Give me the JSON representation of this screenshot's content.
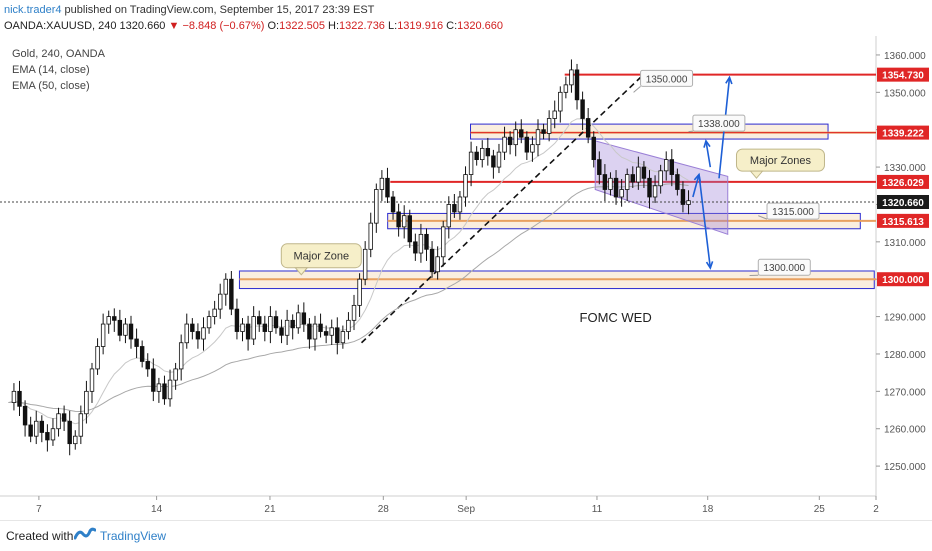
{
  "header": {
    "author": "nick.trader4",
    "published": "published on TradingView.com, September 15, 2017 23:39 EST",
    "symbol": "OANDA:XAUUSD, 240",
    "last": "1320.660",
    "arrow": "▼",
    "change": "−8.848 (−0.67%)",
    "o_label": "O:",
    "o": "1322.505",
    "h_label": "H:",
    "h": "1322.736",
    "l_label": "L:",
    "l": "1319.916",
    "c_label": "C:",
    "c": "1320.660"
  },
  "legend": {
    "line1": "Gold, 240, OANDA",
    "line2": "EMA (14, close)",
    "line3": "EMA (50, close)"
  },
  "footer": {
    "created": "Created with",
    "brand": "TradingView"
  },
  "chart_data": {
    "type": "candlestick",
    "ylim": [
      1242,
      1364
    ],
    "yticks": [
      1250,
      1260,
      1270,
      1280,
      1290,
      1300,
      1310,
      1320,
      1330,
      1340,
      1350,
      1360
    ],
    "xticks": [
      {
        "label": "7",
        "t": 0.04
      },
      {
        "label": "14",
        "t": 0.175
      },
      {
        "label": "21",
        "t": 0.305
      },
      {
        "label": "28",
        "t": 0.435
      },
      {
        "label": "Sep",
        "t": 0.53
      },
      {
        "label": "11",
        "t": 0.68
      },
      {
        "label": "18",
        "t": 0.807
      },
      {
        "label": "25",
        "t": 0.935
      },
      {
        "label": "2",
        "t": 1.0
      }
    ],
    "current_price": 1320.66,
    "price_labels": [
      {
        "value": 1354.73,
        "text": "1354.730",
        "color": "#e02626"
      },
      {
        "value": 1339.222,
        "text": "1339.222",
        "color": "#e02626"
      },
      {
        "value": 1326.029,
        "text": "1326.029",
        "color": "#e02626"
      },
      {
        "value": 1320.66,
        "text": "1320.660",
        "color": "#1a1a1a"
      },
      {
        "value": 1315.613,
        "text": "1315.613",
        "color": "#e02626"
      },
      {
        "value": 1300.0,
        "text": "1300.000",
        "color": "#e02626"
      }
    ],
    "callouts": [
      {
        "text": "1350.000",
        "price": 1350.0
      },
      {
        "text": "1338.000",
        "price": 1338.0
      },
      {
        "text": "1315.000",
        "price": 1315.0
      },
      {
        "text": "1300.000",
        "price": 1300.0
      }
    ],
    "notes": {
      "major_zones": "Major Zones",
      "major_zone": "Major Zone",
      "fomc": "FOMC WED"
    },
    "colors": {
      "up": "#ffffff",
      "down": "#111111",
      "resistance": "#e02626",
      "zone_fill": "#f5d9b8",
      "zone_border": "#2a2ad0",
      "channel": "#9a7fd6",
      "arrow": "#1d5fd6",
      "ema": "#b4b4b4"
    },
    "ohlc_path": [
      1267,
      1270,
      1266,
      1261,
      1258,
      1262,
      1259,
      1257,
      1260,
      1264,
      1262,
      1256,
      1258,
      1264,
      1270,
      1276,
      1282,
      1288,
      1290,
      1289,
      1285,
      1288,
      1284,
      1282,
      1278,
      1276,
      1270,
      1272,
      1268,
      1273,
      1276,
      1283,
      1288,
      1286,
      1284,
      1287,
      1290,
      1292,
      1296,
      1300,
      1292,
      1286,
      1288,
      1284,
      1290,
      1288,
      1286,
      1290,
      1287,
      1285,
      1289,
      1287,
      1291,
      1288,
      1284,
      1288,
      1286,
      1285,
      1287,
      1283,
      1286,
      1289,
      1293,
      1300,
      1308,
      1315,
      1324,
      1327,
      1322,
      1318,
      1314,
      1317,
      1310,
      1307,
      1312,
      1308,
      1302,
      1306,
      1314,
      1320,
      1318,
      1322,
      1328,
      1334,
      1332,
      1335,
      1333,
      1330,
      1334,
      1338,
      1336,
      1340,
      1338,
      1334,
      1336,
      1340,
      1339,
      1343,
      1345,
      1350,
      1352,
      1356,
      1348,
      1343,
      1338,
      1332,
      1328,
      1324,
      1327,
      1322,
      1324,
      1328,
      1326,
      1330,
      1327,
      1322,
      1325,
      1329,
      1332,
      1328,
      1324,
      1320,
      1321
    ]
  }
}
